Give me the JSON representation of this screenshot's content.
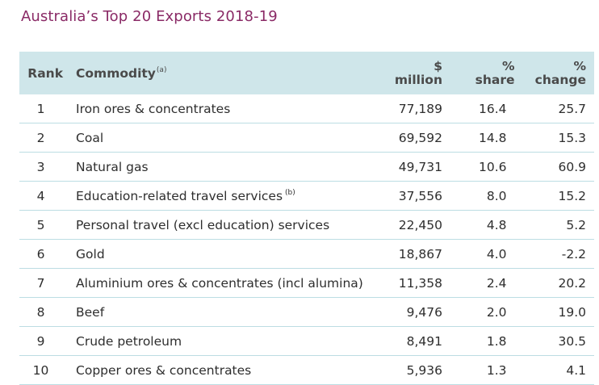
{
  "title": "Australia’s Top 20 Exports 2018-19",
  "header": {
    "rank": "Rank",
    "commodity": "Commodity",
    "commodity_note": "(a)",
    "million_symbol": "$",
    "million_label": "million",
    "share_symbol": "%",
    "share_label": "share",
    "change_symbol": "%",
    "change_label": "change"
  },
  "rows": [
    {
      "rank": "1",
      "commodity": "Iron ores & concentrates",
      "note": "",
      "million": "77,189",
      "share": "16.4",
      "change": "25.7"
    },
    {
      "rank": "2",
      "commodity": "Coal",
      "note": "",
      "million": "69,592",
      "share": "14.8",
      "change": "15.3"
    },
    {
      "rank": "3",
      "commodity": "Natural gas",
      "note": "",
      "million": "49,731",
      "share": "10.6",
      "change": "60.9"
    },
    {
      "rank": "4",
      "commodity": "Education-related travel services",
      "note": "(b)",
      "million": "37,556",
      "share": "8.0",
      "change": "15.2"
    },
    {
      "rank": "5",
      "commodity": "Personal travel (excl education) services",
      "note": "",
      "million": "22,450",
      "share": "4.8",
      "change": "5.2"
    },
    {
      "rank": "6",
      "commodity": "Gold",
      "note": "",
      "million": "18,867",
      "share": "4.0",
      "change": "-2.2"
    },
    {
      "rank": "7",
      "commodity": "Aluminium ores & concentrates (incl alumina)",
      "note": "",
      "million": "11,358",
      "share": "2.4",
      "change": "20.2"
    },
    {
      "rank": "8",
      "commodity": "Beef",
      "note": "",
      "million": "9,476",
      "share": "2.0",
      "change": "19.0"
    },
    {
      "rank": "9",
      "commodity": "Crude petroleum",
      "note": "",
      "million": "8,491",
      "share": "1.8",
      "change": "30.5"
    },
    {
      "rank": "10",
      "commodity": "Copper ores & concentrates",
      "note": "",
      "million": "5,936",
      "share": "1.3",
      "change": "4.1"
    }
  ]
}
